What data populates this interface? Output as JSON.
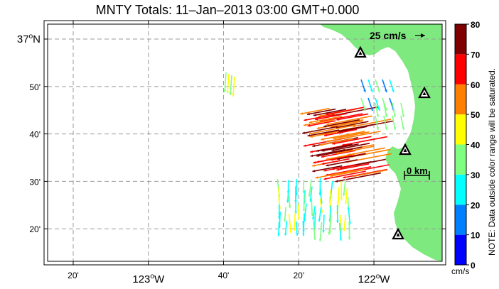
{
  "title": "MNTY Totals: 11–Jan–2013 03:00 GMT+0.000",
  "map": {
    "lat_ticks": [
      {
        "label": "37",
        "deg": "o",
        "hemi": "N",
        "lat": 37.0,
        "major": true
      },
      {
        "label": "50'",
        "lat": 36.8333,
        "major": false
      },
      {
        "label": "40'",
        "lat": 36.6667,
        "major": false
      },
      {
        "label": "30'",
        "lat": 36.5,
        "major": false
      },
      {
        "label": "20'",
        "lat": 36.3333,
        "major": false
      }
    ],
    "lon_ticks": [
      {
        "label": "20'",
        "lon": -123.3333,
        "major": false
      },
      {
        "label": "123",
        "deg": "o",
        "hemi": "W",
        "lon": -123.0,
        "major": true
      },
      {
        "label": "40'",
        "lon": -122.6667,
        "major": false
      },
      {
        "label": "20'",
        "lon": -122.3333,
        "major": false
      },
      {
        "label": "122",
        "deg": "o",
        "hemi": "W",
        "lon": -122.0,
        "major": true
      }
    ],
    "land_color": "#7ee97e",
    "scale_vector_label": "25 cm/s",
    "scale_bar_label": "0 km",
    "station_count": 4
  },
  "colorbar": {
    "ticks": [
      "0",
      "10",
      "20",
      "30",
      "40",
      "50",
      "60",
      "70",
      "80"
    ],
    "colors": [
      "#0000ff",
      "#007fff",
      "#00ffff",
      "#7fff7f",
      "#ffff00",
      "#ff7f00",
      "#ff0000",
      "#7f0000"
    ],
    "unit": "cm/s",
    "note": "NOTE: Data outside color range will be saturated."
  }
}
